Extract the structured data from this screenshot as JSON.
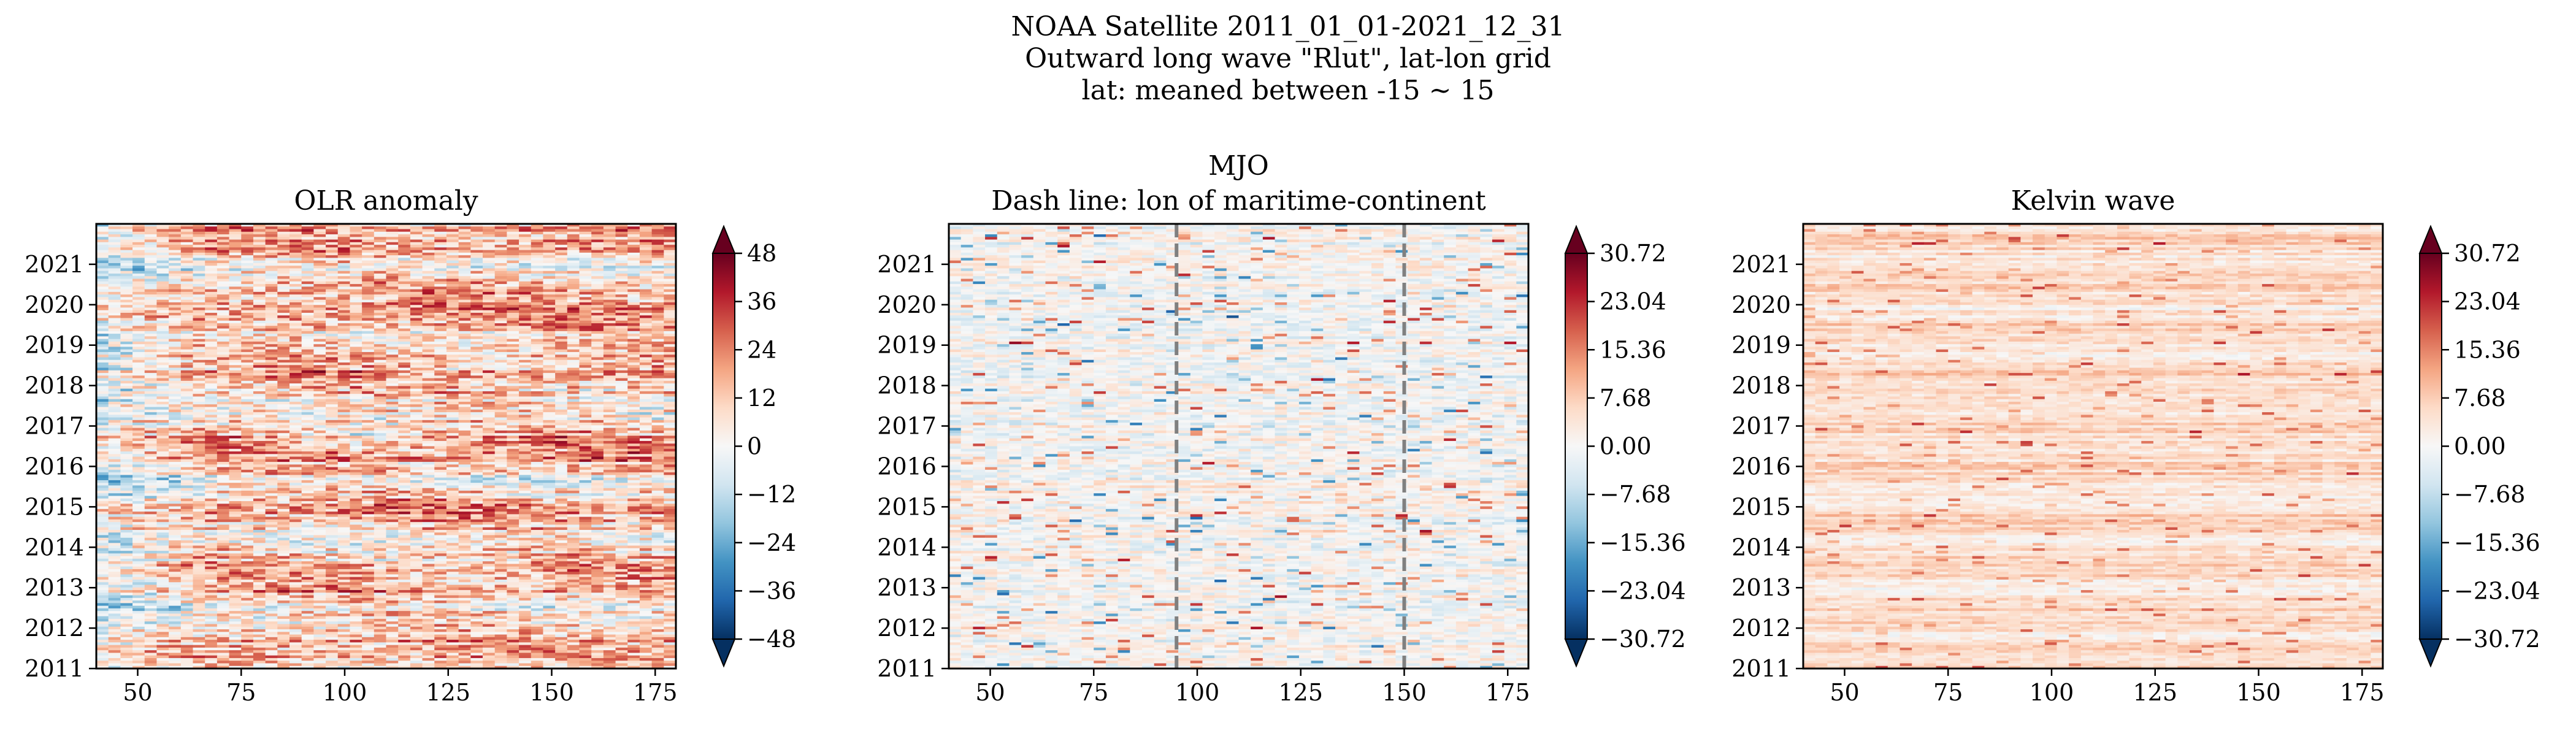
{
  "figure": {
    "suptitle_lines": [
      "NOAA Satellite 2011_01_01-2021_12_31",
      "Outward long wave \"Rlut\", lat-lon grid",
      "lat: meaned between -15 ~ 15"
    ]
  },
  "colormap": {
    "name": "RdBu_r",
    "stops": [
      "#053061",
      "#2166ac",
      "#4393c3",
      "#92c5de",
      "#d1e5f0",
      "#f7f7f7",
      "#fddbc7",
      "#f4a582",
      "#d6604d",
      "#b2182b",
      "#67001f"
    ]
  },
  "guide_line_color": "#808080",
  "chart_data": [
    {
      "type": "heatmap",
      "title_lines": [
        "OLR anomaly"
      ],
      "xlabel": "",
      "ylabel": "",
      "xlim": [
        40,
        180
      ],
      "ylim": [
        2011,
        2022
      ],
      "xticks": [
        "50",
        "75",
        "100",
        "125",
        "150",
        "175"
      ],
      "yticks": [
        "2011",
        "2012",
        "2013",
        "2014",
        "2015",
        "2016",
        "2017",
        "2018",
        "2019",
        "2020",
        "2021"
      ],
      "colorbar": {
        "range": [
          -48,
          48
        ],
        "ticks": [
          "48",
          "36",
          "24",
          "12",
          "0",
          "−12",
          "−24",
          "−36",
          "−48"
        ],
        "extend": "both"
      },
      "pattern": "anomaly",
      "vlines": []
    },
    {
      "type": "heatmap",
      "title_lines": [
        "MJO",
        "Dash line: lon of maritime-continent"
      ],
      "xlabel": "",
      "ylabel": "",
      "xlim": [
        40,
        180
      ],
      "ylim": [
        2011,
        2022
      ],
      "xticks": [
        "50",
        "75",
        "100",
        "125",
        "150",
        "175"
      ],
      "yticks": [
        "2011",
        "2012",
        "2013",
        "2014",
        "2015",
        "2016",
        "2017",
        "2018",
        "2019",
        "2020",
        "2021"
      ],
      "colorbar": {
        "range": [
          -30.72,
          30.72
        ],
        "ticks": [
          "30.72",
          "23.04",
          "15.36",
          "7.68",
          "0.00",
          "−7.68",
          "−15.36",
          "−23.04",
          "−30.72"
        ],
        "extend": "both"
      },
      "pattern": "mjo",
      "vlines": [
        95,
        150
      ]
    },
    {
      "type": "heatmap",
      "title_lines": [
        "Kelvin wave"
      ],
      "xlabel": "",
      "ylabel": "",
      "xlim": [
        40,
        180
      ],
      "ylim": [
        2011,
        2022
      ],
      "xticks": [
        "50",
        "75",
        "100",
        "125",
        "150",
        "175"
      ],
      "yticks": [
        "2011",
        "2012",
        "2013",
        "2014",
        "2015",
        "2016",
        "2017",
        "2018",
        "2019",
        "2020",
        "2021"
      ],
      "colorbar": {
        "range": [
          -30.72,
          30.72
        ],
        "ticks": [
          "30.72",
          "23.04",
          "15.36",
          "7.68",
          "0.00",
          "−7.68",
          "−15.36",
          "−23.04",
          "−30.72"
        ],
        "extend": "both"
      },
      "pattern": "kelvin",
      "vlines": []
    }
  ]
}
